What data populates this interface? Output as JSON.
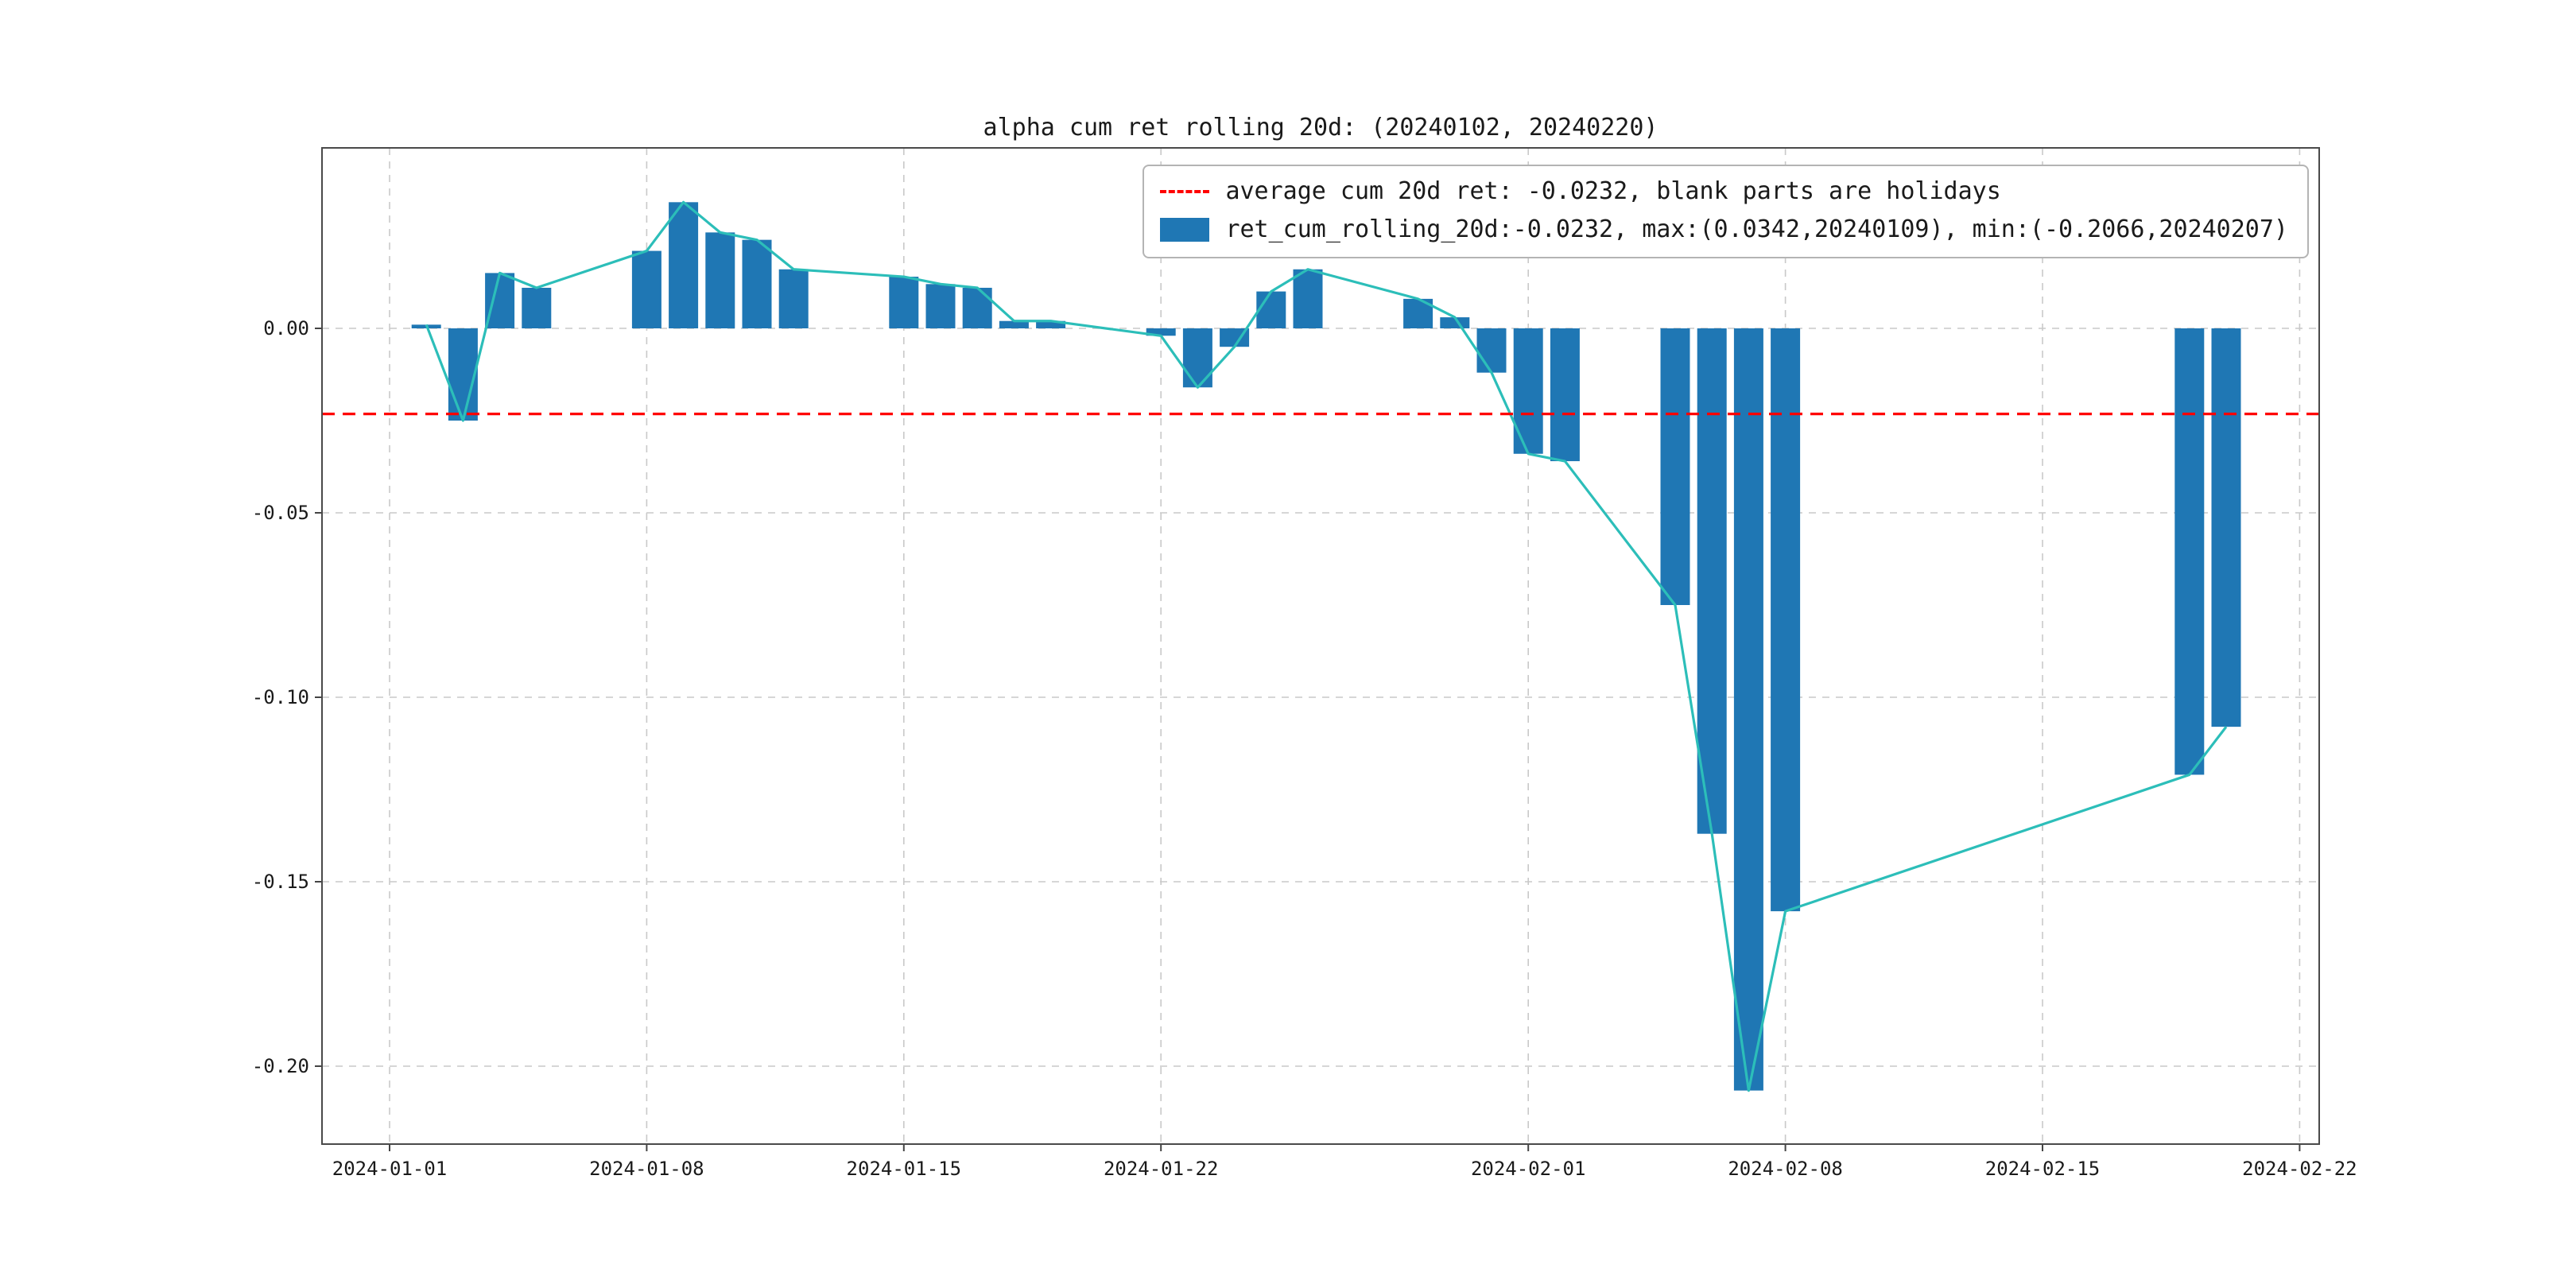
{
  "figure": {
    "title": "alpha cum ret rolling 20d: (20240102, 20240220)"
  },
  "legend": {
    "avg_label": "average cum 20d ret: -0.0232, blank parts are holidays",
    "series_label": "ret_cum_rolling_20d:-0.0232, max:(0.0342,20240109), min:(-0.2066,20240207)"
  },
  "chart_data": {
    "type": "bar",
    "title": "alpha cum ret rolling 20d: (20240102, 20240220)",
    "xlabel": "",
    "ylabel": "",
    "grid": true,
    "legend_position": "upper right",
    "x_ticks": [
      "2024-01-01",
      "2024-01-08",
      "2024-01-15",
      "2024-01-22",
      "2024-02-01",
      "2024-02-08",
      "2024-02-15",
      "2024-02-22"
    ],
    "y_ticks": [
      0.0,
      -0.05,
      -0.1,
      -0.15,
      -0.2
    ],
    "ylim": [
      -0.2211,
      0.0489
    ],
    "xlim": [
      "2023-12-30",
      "2024-02-22"
    ],
    "average_line": {
      "value": -0.0232,
      "color": "#ff0000",
      "style": "dashed",
      "label": "average cum 20d ret: -0.0232, blank parts are holidays"
    },
    "series": {
      "name": "ret_cum_rolling_20d",
      "mean": -0.0232,
      "max": {
        "value": 0.0342,
        "date": "20240109"
      },
      "min": {
        "value": -0.2066,
        "date": "20240207"
      },
      "bar_color": "#1f77b4",
      "line_color": "#2cbeb9",
      "note": "blank parts are holidays",
      "points": [
        [
          "2024-01-02",
          0.001
        ],
        [
          "2024-01-03",
          -0.025
        ],
        [
          "2024-01-04",
          0.015
        ],
        [
          "2024-01-05",
          0.011
        ],
        [
          "2024-01-08",
          0.021
        ],
        [
          "2024-01-09",
          0.0342
        ],
        [
          "2024-01-10",
          0.026
        ],
        [
          "2024-01-11",
          0.024
        ],
        [
          "2024-01-12",
          0.016
        ],
        [
          "2024-01-15",
          0.014
        ],
        [
          "2024-01-16",
          0.012
        ],
        [
          "2024-01-17",
          0.011
        ],
        [
          "2024-01-18",
          0.002
        ],
        [
          "2024-01-19",
          0.002
        ],
        [
          "2024-01-22",
          -0.002
        ],
        [
          "2024-01-23",
          -0.016
        ],
        [
          "2024-01-24",
          -0.005
        ],
        [
          "2024-01-25",
          0.01
        ],
        [
          "2024-01-26",
          0.016
        ],
        [
          "2024-01-29",
          0.008
        ],
        [
          "2024-01-30",
          0.003
        ],
        [
          "2024-01-31",
          -0.012
        ],
        [
          "2024-02-01",
          -0.034
        ],
        [
          "2024-02-02",
          -0.036
        ],
        [
          "2024-02-05",
          -0.075
        ],
        [
          "2024-02-06",
          -0.137
        ],
        [
          "2024-02-07",
          -0.2066
        ],
        [
          "2024-02-08",
          -0.158
        ],
        [
          "2024-02-19",
          -0.121
        ],
        [
          "2024-02-20",
          -0.108
        ]
      ]
    }
  }
}
